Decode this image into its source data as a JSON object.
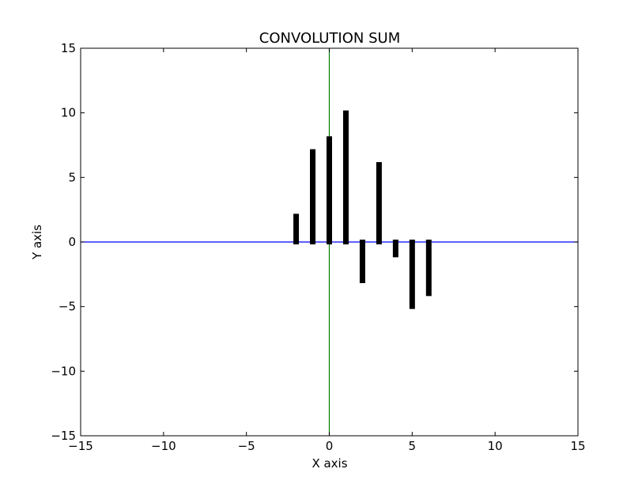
{
  "chart_data": {
    "type": "bar",
    "title": "CONVOLUTION SUM",
    "xlabel": "X axis",
    "ylabel": "Y axis",
    "xlim": [
      -15,
      15
    ],
    "ylim": [
      -15,
      15
    ],
    "x_ticks": [
      -15,
      -10,
      -5,
      0,
      5,
      10,
      15
    ],
    "y_ticks": [
      -15,
      -10,
      -5,
      0,
      5,
      10,
      15
    ],
    "x_tick_labels": [
      "−15",
      "−10",
      "−5",
      "0",
      "5",
      "10",
      "15"
    ],
    "y_tick_labels": [
      "−15",
      "−10",
      "−5",
      "0",
      "5",
      "10",
      "15"
    ],
    "x": [
      -2,
      -1,
      0,
      1,
      2,
      3,
      4,
      5,
      6
    ],
    "values": [
      2,
      7,
      8,
      10,
      -3,
      6,
      -1,
      -5,
      -4
    ],
    "bar_color": "#000000",
    "hline": {
      "y": 0,
      "color": "#0000ff"
    },
    "vline": {
      "x": 0,
      "color": "#008000"
    },
    "grid": false
  }
}
